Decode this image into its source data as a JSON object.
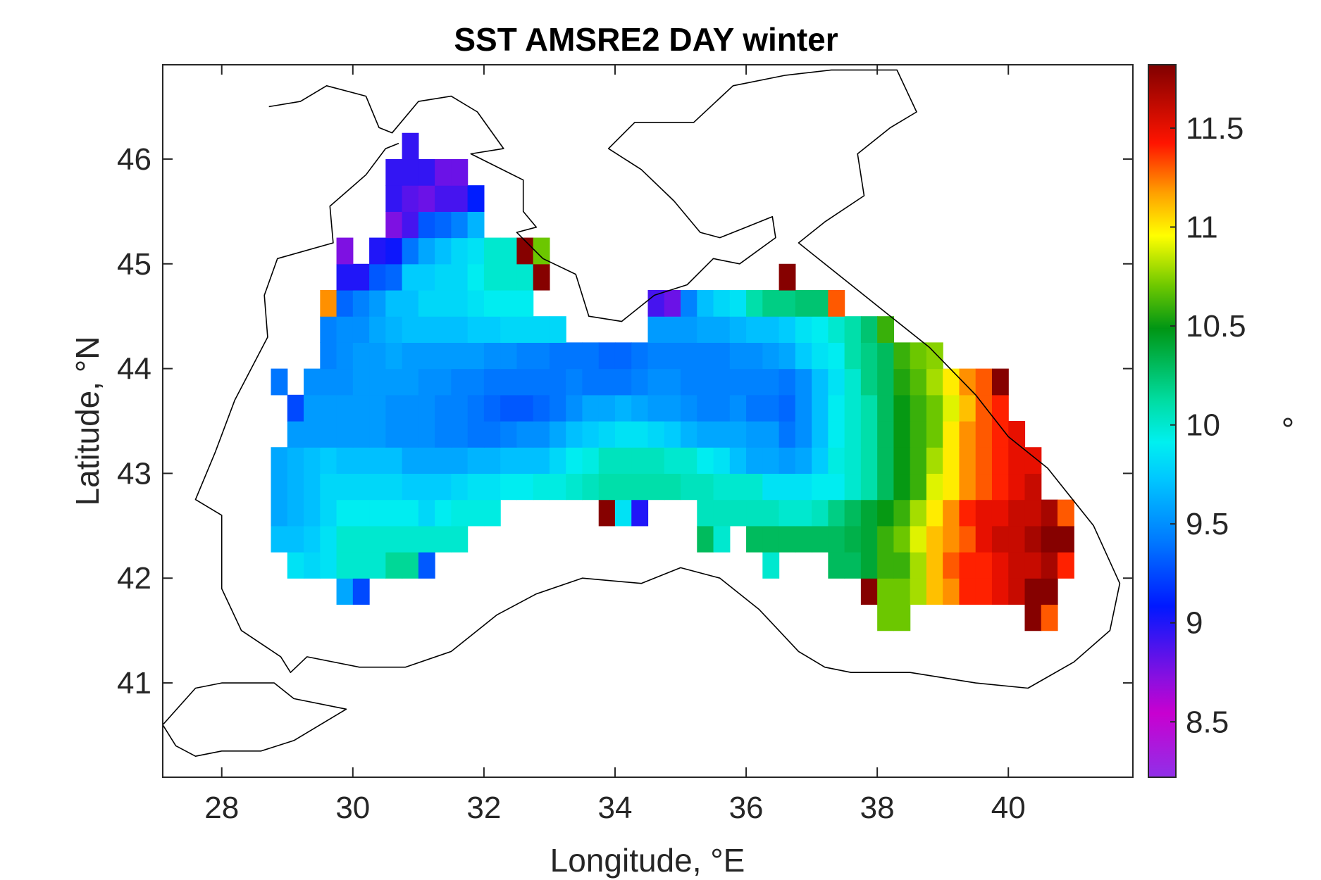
{
  "chart_data": {
    "type": "heatmap",
    "title": "SST AMSRE2 DAY winter",
    "xlabel": "Longitude, °E",
    "ylabel": "Latitude, °N",
    "colorbar_label": "°",
    "xlim": [
      27.1,
      41.9
    ],
    "ylim": [
      40.1,
      46.9
    ],
    "x_ticks": [
      "28",
      "30",
      "32",
      "34",
      "36",
      "38",
      "40"
    ],
    "y_ticks": [
      "41",
      "42",
      "43",
      "44",
      "45",
      "46"
    ],
    "clim": [
      8.22,
      11.82
    ],
    "colorbar_ticks": [
      "8.5",
      "9",
      "9.5",
      "10",
      "10.5",
      "11",
      "11.5"
    ],
    "grid": false,
    "colormap": "rainbow (purple-blue-cyan-green-yellow-red-dark red)",
    "cell_size_deg": [
      0.25,
      0.25
    ],
    "grid_origin": {
      "lon0": 28.75,
      "lat0": 41.25
    },
    "values": [
      [
        null,
        null,
        null,
        null,
        null,
        null,
        null,
        null,
        null,
        null,
        null,
        null,
        null,
        null,
        null,
        null,
        null,
        null,
        null,
        null,
        null,
        null,
        null,
        null,
        null,
        null,
        null,
        null,
        null,
        null,
        null,
        null,
        null,
        null,
        null,
        null,
        null,
        null,
        null,
        null,
        null,
        null,
        null,
        null,
        null,
        null,
        null,
        null,
        null
      ],
      [
        null,
        null,
        null,
        null,
        null,
        null,
        null,
        null,
        null,
        null,
        null,
        null,
        null,
        null,
        null,
        null,
        null,
        null,
        null,
        null,
        null,
        null,
        null,
        null,
        null,
        null,
        null,
        null,
        null,
        null,
        null,
        null,
        null,
        null,
        null,
        null,
        null,
        10.7,
        10.7,
        null,
        null,
        null,
        null,
        null,
        null,
        null,
        11.8,
        11.3,
        null
      ],
      [
        null,
        null,
        null,
        null,
        9.6,
        9.25,
        null,
        null,
        null,
        null,
        null,
        null,
        null,
        null,
        null,
        null,
        null,
        null,
        null,
        null,
        null,
        null,
        null,
        null,
        null,
        null,
        null,
        null,
        null,
        null,
        null,
        null,
        null,
        null,
        null,
        null,
        11.8,
        10.7,
        10.7,
        10.8,
        11.1,
        11.2,
        11.4,
        11.4,
        11.5,
        11.6,
        11.8,
        11.8,
        null
      ],
      [
        null,
        9.85,
        9.8,
        9.85,
        10.0,
        10.0,
        10.0,
        10.15,
        10.15,
        9.3,
        null,
        null,
        null,
        null,
        null,
        null,
        null,
        null,
        null,
        null,
        null,
        null,
        null,
        null,
        null,
        null,
        null,
        null,
        null,
        null,
        10.0,
        null,
        null,
        null,
        10.3,
        10.3,
        10.4,
        10.6,
        10.6,
        10.8,
        11.1,
        11.3,
        11.4,
        11.4,
        11.5,
        11.6,
        11.6,
        11.7,
        11.4
      ],
      [
        9.7,
        9.7,
        9.75,
        9.85,
        10.0,
        10.0,
        10.0,
        10.0,
        10.0,
        10.0,
        10.0,
        10.0,
        null,
        null,
        null,
        null,
        null,
        null,
        null,
        null,
        null,
        null,
        null,
        null,
        null,
        null,
        10.3,
        10.0,
        null,
        10.3,
        10.3,
        10.3,
        10.3,
        10.3,
        10.3,
        10.35,
        10.4,
        10.6,
        10.7,
        10.9,
        11.1,
        11.2,
        11.3,
        11.5,
        11.6,
        11.6,
        11.7,
        11.8,
        11.8
      ],
      [
        9.6,
        9.65,
        9.7,
        9.8,
        9.9,
        9.9,
        9.9,
        9.9,
        9.9,
        9.8,
        9.9,
        9.95,
        9.95,
        9.95,
        null,
        null,
        null,
        null,
        null,
        null,
        11.8,
        9.85,
        9.0,
        null,
        null,
        null,
        10.05,
        10.05,
        10.05,
        10.05,
        10.05,
        10.0,
        10.0,
        10.05,
        10.2,
        10.3,
        10.4,
        10.5,
        10.6,
        10.8,
        11.0,
        11.2,
        11.4,
        11.5,
        11.5,
        11.6,
        11.6,
        11.7,
        11.3
      ],
      [
        9.6,
        9.65,
        9.7,
        9.8,
        9.8,
        9.8,
        9.8,
        9.8,
        9.75,
        9.75,
        9.75,
        9.8,
        9.85,
        9.85,
        9.9,
        9.9,
        9.95,
        9.95,
        10.0,
        10.05,
        10.1,
        10.1,
        10.1,
        10.1,
        10.1,
        10.05,
        10.05,
        10.0,
        10.0,
        10.0,
        9.85,
        9.85,
        9.85,
        9.9,
        9.9,
        10.0,
        10.1,
        10.3,
        10.5,
        10.6,
        10.9,
        11.0,
        11.2,
        11.3,
        11.4,
        11.5,
        11.6,
        null,
        null
      ],
      [
        9.6,
        9.65,
        9.7,
        9.75,
        9.7,
        9.7,
        9.7,
        9.7,
        9.6,
        9.6,
        9.6,
        9.6,
        9.65,
        9.65,
        9.7,
        9.7,
        9.7,
        9.8,
        9.9,
        9.95,
        10.05,
        10.05,
        10.05,
        10.05,
        10.0,
        10.0,
        9.9,
        9.85,
        9.7,
        9.6,
        9.6,
        9.55,
        9.6,
        9.75,
        9.95,
        10.0,
        10.1,
        10.3,
        10.5,
        10.6,
        10.8,
        11.0,
        11.2,
        11.3,
        11.4,
        11.5,
        11.5,
        null,
        null
      ],
      [
        null,
        9.55,
        9.55,
        9.55,
        9.55,
        9.55,
        9.55,
        9.5,
        9.5,
        9.5,
        9.45,
        9.45,
        9.4,
        9.4,
        9.45,
        9.5,
        9.5,
        9.6,
        9.7,
        9.75,
        9.8,
        9.85,
        9.85,
        9.8,
        9.75,
        9.65,
        9.6,
        9.6,
        9.6,
        9.55,
        9.55,
        9.4,
        9.5,
        9.7,
        9.9,
        10.0,
        10.1,
        10.3,
        10.5,
        10.6,
        10.7,
        11.0,
        11.2,
        11.3,
        11.4,
        11.5,
        null,
        null,
        null
      ],
      [
        null,
        9.25,
        9.55,
        9.55,
        9.55,
        9.55,
        9.55,
        9.5,
        9.5,
        9.5,
        9.45,
        9.45,
        9.4,
        9.35,
        9.3,
        9.3,
        9.35,
        9.4,
        9.5,
        9.6,
        9.6,
        9.65,
        9.6,
        9.55,
        9.55,
        9.5,
        9.45,
        9.45,
        9.5,
        9.4,
        9.4,
        9.35,
        9.5,
        9.7,
        9.9,
        10.0,
        10.1,
        10.3,
        10.5,
        10.6,
        10.7,
        10.9,
        11.1,
        11.3,
        11.4,
        null,
        null,
        null,
        null
      ],
      [
        9.4,
        null,
        9.5,
        9.5,
        9.5,
        9.55,
        9.55,
        9.55,
        9.55,
        9.5,
        9.5,
        9.45,
        9.45,
        9.4,
        9.4,
        9.4,
        9.4,
        9.4,
        9.45,
        9.4,
        9.4,
        9.4,
        9.45,
        9.5,
        9.5,
        9.45,
        9.45,
        9.45,
        9.45,
        9.45,
        9.45,
        9.4,
        9.5,
        9.7,
        9.85,
        10.0,
        10.2,
        10.3,
        10.55,
        10.65,
        10.8,
        11.0,
        11.2,
        11.3,
        11.8,
        null,
        null,
        null,
        null
      ],
      [
        null,
        null,
        null,
        9.45,
        9.5,
        9.55,
        9.55,
        9.6,
        9.55,
        9.55,
        9.55,
        9.55,
        9.55,
        9.5,
        9.5,
        9.45,
        9.45,
        9.4,
        9.4,
        9.4,
        9.35,
        9.35,
        9.4,
        9.45,
        9.45,
        9.45,
        9.45,
        9.45,
        9.5,
        9.5,
        9.55,
        9.6,
        9.75,
        9.85,
        9.9,
        10.1,
        10.2,
        10.3,
        10.6,
        10.7,
        10.75,
        null,
        null,
        null,
        null,
        null,
        null,
        null,
        null
      ],
      [
        null,
        null,
        null,
        9.45,
        9.5,
        9.5,
        9.6,
        9.65,
        9.7,
        9.7,
        9.7,
        9.7,
        9.75,
        9.75,
        9.8,
        9.8,
        9.8,
        9.8,
        null,
        null,
        null,
        null,
        null,
        9.55,
        9.55,
        9.55,
        9.6,
        9.6,
        9.65,
        9.7,
        9.7,
        9.75,
        9.85,
        9.9,
        10.0,
        10.1,
        10.25,
        10.6,
        null,
        null,
        null,
        null,
        null,
        null,
        null,
        null,
        null,
        null,
        null
      ],
      [
        null,
        null,
        null,
        11.2,
        9.35,
        9.45,
        9.55,
        9.7,
        9.7,
        9.8,
        9.8,
        9.8,
        9.85,
        9.9,
        9.9,
        9.9,
        null,
        null,
        null,
        null,
        null,
        null,
        null,
        8.9,
        8.8,
        9.45,
        9.7,
        9.8,
        9.85,
        10.1,
        10.2,
        10.2,
        10.25,
        10.25,
        11.3,
        null,
        null,
        null,
        null,
        null,
        null,
        null,
        null,
        null,
        null,
        null,
        null,
        null,
        null
      ],
      [
        null,
        null,
        null,
        null,
        9.0,
        9.0,
        9.3,
        9.35,
        9.75,
        9.75,
        9.8,
        9.8,
        9.9,
        10.0,
        10.0,
        10.0,
        11.8,
        null,
        null,
        null,
        null,
        null,
        null,
        null,
        null,
        null,
        null,
        null,
        null,
        null,
        null,
        11.8,
        null,
        null,
        null,
        null,
        null,
        null,
        null,
        null,
        null,
        null,
        null,
        null,
        null,
        null,
        null,
        null,
        null
      ],
      [
        null,
        null,
        null,
        null,
        8.75,
        null,
        9.0,
        9.05,
        9.4,
        9.6,
        9.7,
        9.8,
        9.85,
        10.0,
        10.0,
        11.8,
        10.7,
        null,
        null,
        null,
        null,
        null,
        null,
        null,
        null,
        null,
        null,
        null,
        null,
        null,
        null,
        null,
        null,
        null,
        null,
        null,
        null,
        null,
        null,
        null,
        null,
        null,
        null,
        null,
        null,
        null,
        null,
        null,
        null
      ],
      [
        null,
        null,
        null,
        null,
        null,
        null,
        null,
        8.75,
        8.9,
        9.3,
        9.35,
        9.45,
        9.65,
        null,
        null,
        null,
        null,
        null,
        null,
        null,
        null,
        null,
        null,
        null,
        null,
        null,
        null,
        null,
        null,
        null,
        null,
        null,
        null,
        null,
        null,
        null,
        null,
        null,
        null,
        null,
        null,
        null,
        null,
        null,
        null,
        null,
        null,
        null,
        null
      ],
      [
        null,
        null,
        null,
        null,
        null,
        null,
        null,
        8.95,
        8.85,
        8.8,
        8.9,
        8.9,
        9.1,
        null,
        null,
        null,
        null,
        null,
        null,
        null,
        null,
        null,
        null,
        null,
        null,
        null,
        null,
        null,
        null,
        null,
        null,
        null,
        null,
        null,
        null,
        null,
        null,
        null,
        null,
        null,
        null,
        null,
        null,
        null,
        null,
        null,
        null,
        null,
        null
      ],
      [
        null,
        null,
        null,
        null,
        null,
        null,
        null,
        8.95,
        8.95,
        8.95,
        8.8,
        8.8,
        null,
        null,
        null,
        null,
        null,
        null,
        null,
        null,
        null,
        null,
        null,
        null,
        null,
        null,
        null,
        null,
        null,
        null,
        null,
        null,
        null,
        null,
        null,
        null,
        null,
        null,
        null,
        null,
        null,
        null,
        null,
        null,
        null,
        null,
        null,
        null,
        null
      ],
      [
        null,
        null,
        null,
        null,
        null,
        null,
        null,
        null,
        8.95,
        null,
        null,
        null,
        null,
        null,
        null,
        null,
        null,
        null,
        null,
        null,
        null,
        null,
        null,
        null,
        null,
        null,
        null,
        null,
        null,
        null,
        null,
        null,
        null,
        null,
        null,
        null,
        null,
        null,
        null,
        null,
        null,
        null,
        null,
        null,
        null,
        null,
        null,
        null,
        null
      ]
    ]
  }
}
